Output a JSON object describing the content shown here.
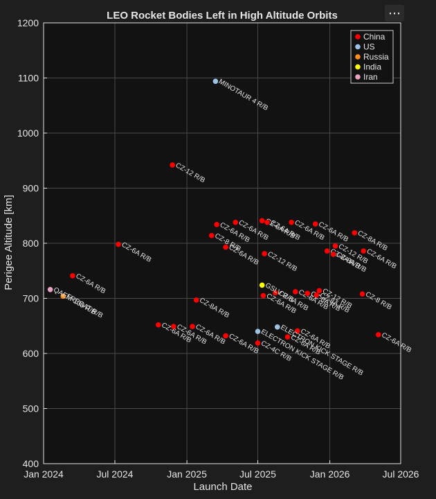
{
  "colors": {
    "background": "#1e1e1e",
    "plot_background": "#121212",
    "axis": "#e6e6e6",
    "grid": "#4a4a4a",
    "text": "#e6e6e6"
  },
  "menu": {
    "label": "⋯",
    "icon": "more-horizontal-icon"
  },
  "chart_data": {
    "type": "scatter",
    "title": "LEO Rocket Bodies Left in High Altitude Orbits",
    "xlabel": "Launch Date",
    "ylabel": "Perigee Altitude [km]",
    "xlim": [
      "2024-01-01",
      "2026-07-01"
    ],
    "ylim": [
      400,
      1200
    ],
    "xticks": [
      {
        "date": "2024-01-01",
        "label": "Jan 2024"
      },
      {
        "date": "2024-07-01",
        "label": "Jul 2024"
      },
      {
        "date": "2025-01-01",
        "label": "Jan 2025"
      },
      {
        "date": "2025-07-01",
        "label": "Jul 2025"
      },
      {
        "date": "2026-01-01",
        "label": "Jan 2026"
      },
      {
        "date": "2026-07-01",
        "label": "Jul 2026"
      }
    ],
    "yticks": [
      400,
      500,
      600,
      700,
      800,
      900,
      1000,
      1100,
      1200
    ],
    "grid": true,
    "legend_position": "top-right",
    "series": [
      {
        "name": "China",
        "color": "#ff0000",
        "points": [
          {
            "date": "2024-03-15",
            "y": 741,
            "label": "CZ-6A R/B"
          },
          {
            "date": "2024-07-10",
            "y": 798,
            "label": "CZ-6A R/B"
          },
          {
            "date": "2024-10-20",
            "y": 652,
            "label": "CZ-6A R/B"
          },
          {
            "date": "2024-11-25",
            "y": 942,
            "label": "CZ-12 R/B"
          },
          {
            "date": "2024-11-28",
            "y": 649,
            "label": "CZ-6A R/B"
          },
          {
            "date": "2025-01-15",
            "y": 649,
            "label": "CZ-6A R/B"
          },
          {
            "date": "2025-01-25",
            "y": 697,
            "label": "CZ-8A R/B"
          },
          {
            "date": "2025-03-05",
            "y": 814,
            "label": "CZ-8 R/B"
          },
          {
            "date": "2025-03-18",
            "y": 834,
            "label": "CZ-6A R/B"
          },
          {
            "date": "2025-04-10",
            "y": 632,
            "label": "CZ-6A R/B"
          },
          {
            "date": "2025-04-10",
            "y": 793,
            "label": "CZ-6A R/B"
          },
          {
            "date": "2025-05-05",
            "y": 838,
            "label": "CZ-6A R/B"
          },
          {
            "date": "2025-07-01",
            "y": 619,
            "label": "CZ-4C R/B"
          },
          {
            "date": "2025-07-12",
            "y": 841,
            "label": "CZ-6A R/B"
          },
          {
            "date": "2025-07-15",
            "y": 705,
            "label": "CZ-6A R/B"
          },
          {
            "date": "2025-07-18",
            "y": 781,
            "label": "CZ-12 R/B"
          },
          {
            "date": "2025-07-25",
            "y": 838,
            "label": "CZ-6A R/B"
          },
          {
            "date": "2025-08-15",
            "y": 710,
            "label": "CZ-6A R/B"
          },
          {
            "date": "2025-09-15",
            "y": 630,
            "label": "CZ-6A R/B"
          },
          {
            "date": "2025-09-25",
            "y": 838,
            "label": "CZ-6A R/B"
          },
          {
            "date": "2025-10-05",
            "y": 712,
            "label": "CZ-6A R/B"
          },
          {
            "date": "2025-10-10",
            "y": 641,
            "label": "CZ-6A R/B"
          },
          {
            "date": "2025-11-05",
            "y": 709,
            "label": "CZ-6A R/B"
          },
          {
            "date": "2025-11-25",
            "y": 835,
            "label": "CZ-6A R/B"
          },
          {
            "date": "2025-11-28",
            "y": 706,
            "label": "CZ-8A R/B"
          },
          {
            "date": "2025-12-05",
            "y": 714,
            "label": "CZ-12 R/B"
          },
          {
            "date": "2025-12-25",
            "y": 786,
            "label": "CZ-8A R/B"
          },
          {
            "date": "2026-01-10",
            "y": 780,
            "label": "CZ-8A R/B"
          },
          {
            "date": "2026-01-15",
            "y": 795,
            "label": "CZ-12 R/B"
          },
          {
            "date": "2026-03-05",
            "y": 819,
            "label": "CZ-8A R/B"
          },
          {
            "date": "2026-03-25",
            "y": 708,
            "label": "CZ-8 R/B"
          },
          {
            "date": "2026-03-28",
            "y": 786,
            "label": "CZ-6A R/B"
          },
          {
            "date": "2026-05-05",
            "y": 634,
            "label": "CZ-6A R/B"
          }
        ]
      },
      {
        "name": "US",
        "color": "#9cc3e6",
        "points": [
          {
            "date": "2025-03-15",
            "y": 1094,
            "label": "MINOTAUR 4 R/B"
          },
          {
            "date": "2025-07-01",
            "y": 640,
            "label": "ELECTRON KICK STAGE R/B"
          },
          {
            "date": "2025-08-20",
            "y": 648,
            "label": "ELECTRON KICK STAGE R/B"
          }
        ]
      },
      {
        "name": "Russia",
        "color": "#ff8c1a",
        "points": [
          {
            "date": "2024-02-20",
            "y": 704,
            "label": "FREGAT R/B"
          }
        ]
      },
      {
        "name": "India",
        "color": "#ffff00",
        "points": [
          {
            "date": "2025-07-12",
            "y": 724,
            "label": "GSLV R/B"
          }
        ]
      },
      {
        "name": "Iran",
        "color": "#e8a3c2",
        "points": [
          {
            "date": "2024-01-18",
            "y": 716,
            "label": "QAEM-100 R/B"
          }
        ]
      }
    ]
  }
}
